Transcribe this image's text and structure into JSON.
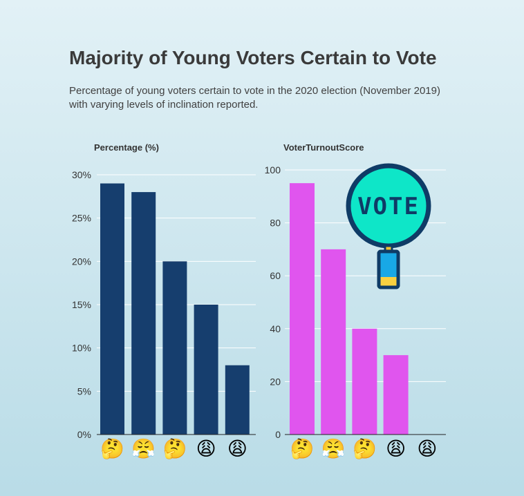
{
  "header": {
    "title": "Majority of Young Voters Certain to Vote",
    "subtitle": "Percentage of young voters certain to vote in the 2020 election (November 2019) with varying levels of inclination reported."
  },
  "colors": {
    "left_bars": "#163e6e",
    "right_bars": "#e055ee",
    "vote_circle": "#0ee6c8",
    "vote_outline": "#0f3b66"
  },
  "vote_icon": {
    "text": "VOTE"
  },
  "chart_data": [
    {
      "type": "bar",
      "title": "Percentage (%)",
      "categories": [
        "thinking",
        "steam",
        "thinking",
        "weary",
        "weary"
      ],
      "category_icons": [
        "🤔",
        "😤",
        "🤔",
        "😩",
        "😩"
      ],
      "values": [
        29,
        28,
        20,
        15,
        8
      ],
      "ylim": [
        0,
        30
      ],
      "yticks": [
        0,
        5,
        10,
        15,
        20,
        25,
        30
      ],
      "ytick_labels": [
        "0%",
        "5%",
        "10%",
        "15%",
        "20%",
        "25%",
        "30%"
      ]
    },
    {
      "type": "bar",
      "title": "VoterTurnoutScore",
      "categories": [
        "thinking",
        "steam",
        "thinking",
        "weary",
        "weary"
      ],
      "category_icons": [
        "🤔",
        "😤",
        "🤔",
        "😩",
        "😩"
      ],
      "values": [
        95,
        70,
        40,
        30,
        0
      ],
      "ylim": [
        0,
        100
      ],
      "yticks": [
        0,
        20,
        40,
        60,
        80,
        100
      ],
      "ytick_labels": [
        "0",
        "20",
        "40",
        "60",
        "80",
        "100"
      ]
    }
  ]
}
